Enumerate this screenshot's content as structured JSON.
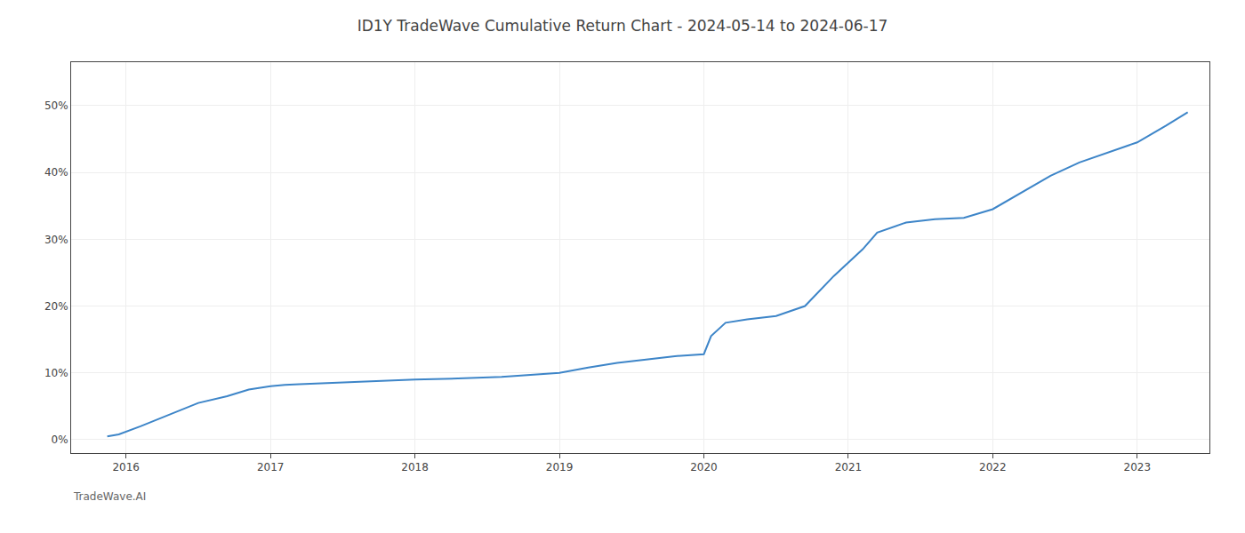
{
  "chart_data": {
    "type": "line",
    "title": "ID1Y TradeWave Cumulative Return Chart - 2024-05-14 to 2024-06-17",
    "annotations": [
      {
        "text": "TradeWave.AI"
      }
    ],
    "x": [
      2015.87,
      2015.95,
      2016.1,
      2016.3,
      2016.5,
      2016.7,
      2016.85,
      2017.0,
      2017.1,
      2017.2,
      2017.4,
      2017.6,
      2017.8,
      2018.0,
      2018.2,
      2018.4,
      2018.5,
      2018.6,
      2018.8,
      2019.0,
      2019.2,
      2019.4,
      2019.6,
      2019.8,
      2020.0,
      2020.05,
      2020.15,
      2020.3,
      2020.5,
      2020.7,
      2020.9,
      2021.0,
      2021.1,
      2021.2,
      2021.4,
      2021.6,
      2021.8,
      2022.0,
      2022.2,
      2022.4,
      2022.6,
      2022.8,
      2023.0,
      2023.2,
      2023.35
    ],
    "values": [
      0.005,
      0.008,
      0.02,
      0.038,
      0.055,
      0.065,
      0.075,
      0.08,
      0.082,
      0.083,
      0.085,
      0.086,
      0.088,
      0.09,
      0.091,
      0.092,
      0.093,
      0.094,
      0.097,
      0.1,
      0.108,
      0.115,
      0.12,
      0.125,
      0.128,
      0.155,
      0.175,
      0.18,
      0.185,
      0.2,
      0.245,
      0.265,
      0.285,
      0.31,
      0.325,
      0.33,
      0.332,
      0.345,
      0.37,
      0.395,
      0.415,
      0.43,
      0.445,
      0.47,
      0.49
    ],
    "color": "#3d85c8",
    "xlim": [
      2015.62,
      2023.5
    ],
    "xticks": [
      2016,
      2017,
      2018,
      2019,
      2020,
      2021,
      2022,
      2023
    ],
    "ylim": [
      -0.02,
      0.565
    ],
    "yticks": [
      {
        "value": 0.0,
        "label": "0%"
      },
      {
        "value": 0.1,
        "label": "10%"
      },
      {
        "value": 0.2,
        "label": "20%"
      },
      {
        "value": 0.3,
        "label": "30%"
      },
      {
        "value": 0.4,
        "label": "40%"
      },
      {
        "value": 0.5,
        "label": "50%"
      }
    ],
    "grid": true
  }
}
